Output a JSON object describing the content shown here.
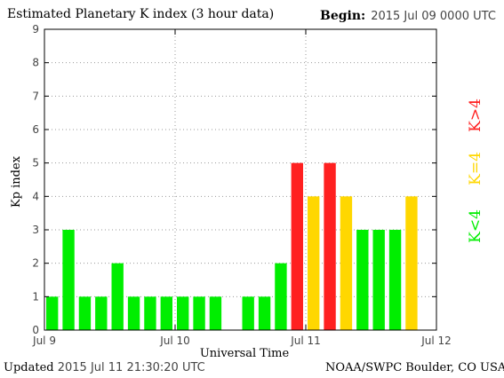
{
  "header": {
    "title": "Estimated Planetary K index (3 hour data)",
    "begin_label": "Begin:",
    "begin_value": "2015 Jul 09 0000 UTC"
  },
  "footer": {
    "updated_label": "Updated",
    "updated_value": "2015 Jul 11 21:30:20 UTC",
    "credit": "NOAA/SWPC Boulder, CO USA"
  },
  "legend": [
    {
      "label": "K<4",
      "color": "#00ee00"
    },
    {
      "label": "K=4",
      "color": "#ffd700"
    },
    {
      "label": "K>4",
      "color": "#ff2020"
    }
  ],
  "chart_data": {
    "type": "bar",
    "title": "Estimated Planetary K index (3 hour data)",
    "xlabel": "Universal Time",
    "ylabel": "Kp index",
    "ylim": [
      0,
      9
    ],
    "yticks": [
      "0",
      "1",
      "2",
      "3",
      "4",
      "5",
      "6",
      "7",
      "8",
      "9"
    ],
    "xticks": [
      "Jul 9",
      "Jul 10",
      "Jul 11",
      "Jul 12"
    ],
    "grid": true,
    "interval_hours": 3,
    "values": [
      1,
      3,
      1,
      1,
      2,
      1,
      1,
      1,
      1,
      1,
      1,
      null,
      1,
      1,
      2,
      5,
      4,
      5,
      4,
      3,
      3,
      3,
      4,
      null
    ],
    "colors": {
      "below4": "#00ee00",
      "equal4": "#ffd700",
      "above4": "#ff2020"
    }
  }
}
